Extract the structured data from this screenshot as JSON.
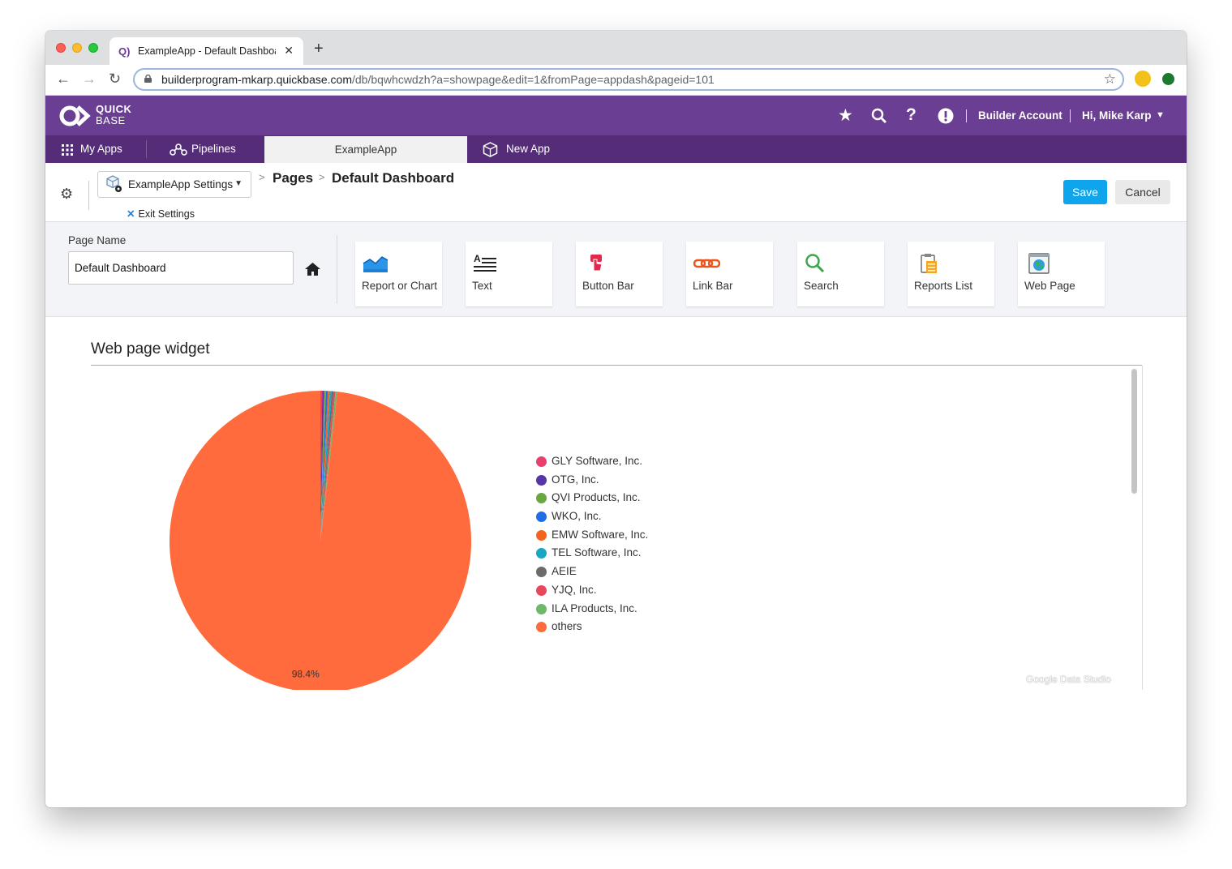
{
  "browser": {
    "tab_title": "ExampleApp - Default Dashboard",
    "url_host": "builderprogram-mkarp.quickbase.com",
    "url_path": "/db/bqwhcwdzh?a=showpage&edit=1&fromPage=appdash&pageid=101"
  },
  "header": {
    "logo_line1": "QUICK",
    "logo_line2": "BASE",
    "account_link": "Builder Account",
    "user_menu": "Hi, Mike Karp"
  },
  "nav": {
    "my_apps": "My Apps",
    "pipelines": "Pipelines",
    "active_app": "ExampleApp",
    "new_app": "New App"
  },
  "settings_bar": {
    "dropdown_label": "ExampleApp Settings",
    "exit_label": "Exit Settings",
    "breadcrumb_pages": "Pages",
    "breadcrumb_current": "Default Dashboard",
    "save_label": "Save",
    "cancel_label": "Cancel"
  },
  "page_name": {
    "label": "Page Name",
    "value": "Default Dashboard"
  },
  "widgets": [
    {
      "label": "Report or Chart",
      "icon": "report-chart-icon"
    },
    {
      "label": "Text",
      "icon": "text-icon"
    },
    {
      "label": "Button Bar",
      "icon": "button-bar-icon"
    },
    {
      "label": "Link Bar",
      "icon": "link-bar-icon"
    },
    {
      "label": "Search",
      "icon": "search-icon"
    },
    {
      "label": "Reports List",
      "icon": "reports-list-icon"
    },
    {
      "label": "Web Page",
      "icon": "web-page-icon"
    }
  ],
  "content": {
    "widget_title": "Web page widget",
    "watermark": "Google Data Studio"
  },
  "chart_data": {
    "type": "pie",
    "categories": [
      "GLY Software, Inc.",
      "OTG, Inc.",
      "QVI Products, Inc.",
      "WKO, Inc.",
      "EMW Software, Inc.",
      "TEL Software, Inc.",
      "AEIE",
      "YJQ, Inc.",
      "ILA Products, Inc.",
      "others"
    ],
    "values": [
      0.2,
      0.2,
      0.2,
      0.2,
      0.2,
      0.2,
      0.2,
      0.2,
      0.2,
      98.4
    ],
    "colors": [
      "#e8406c",
      "#5535a8",
      "#6aa83f",
      "#1e6ee8",
      "#f5631d",
      "#18a6c2",
      "#6b6b6b",
      "#e8485a",
      "#6cba67",
      "#ff6b3d"
    ],
    "data_labels": [
      "",
      "",
      "",
      "",
      "",
      "",
      "",
      "",
      "",
      "98.4%"
    ],
    "legend_position": "right"
  }
}
